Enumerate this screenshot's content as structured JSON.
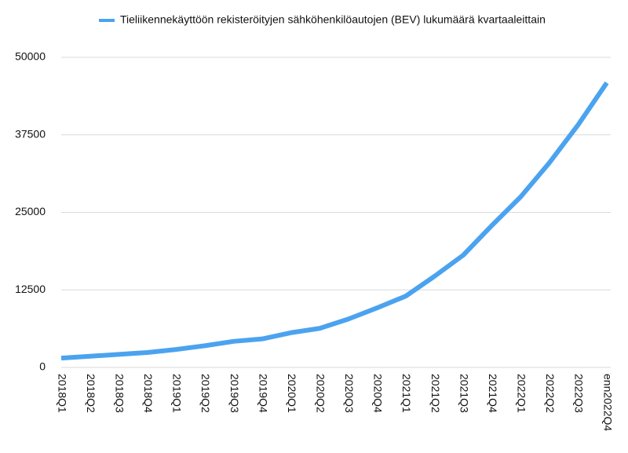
{
  "chart_data": {
    "type": "line",
    "categories": [
      "2018Q1",
      "2018Q2",
      "2018Q3",
      "2018Q4",
      "2019Q1",
      "2019Q2",
      "2019Q3",
      "2019Q4",
      "2020Q1",
      "2020Q2",
      "2020Q3",
      "2020Q4",
      "2021Q1",
      "2021Q2",
      "2021Q3",
      "2021Q4",
      "2022Q1",
      "2022Q2",
      "2022Q3",
      "enn2022Q4"
    ],
    "series": [
      {
        "name": "Tieliikennekäyttöön rekisteröityjen sähköhenkilöautojen (BEV) lukumäärä kvartaaleittain",
        "color": "#4ba3ef",
        "values": [
          1500,
          1800,
          2100,
          2400,
          2900,
          3500,
          4200,
          4600,
          5600,
          6300,
          7800,
          9600,
          11500,
          14700,
          18100,
          22900,
          27500,
          33000,
          39100,
          45900
        ]
      }
    ],
    "ylim": [
      0,
      50000
    ],
    "yticks": [
      0,
      12500,
      25000,
      37500,
      50000
    ],
    "grid": true,
    "legend": "top"
  }
}
